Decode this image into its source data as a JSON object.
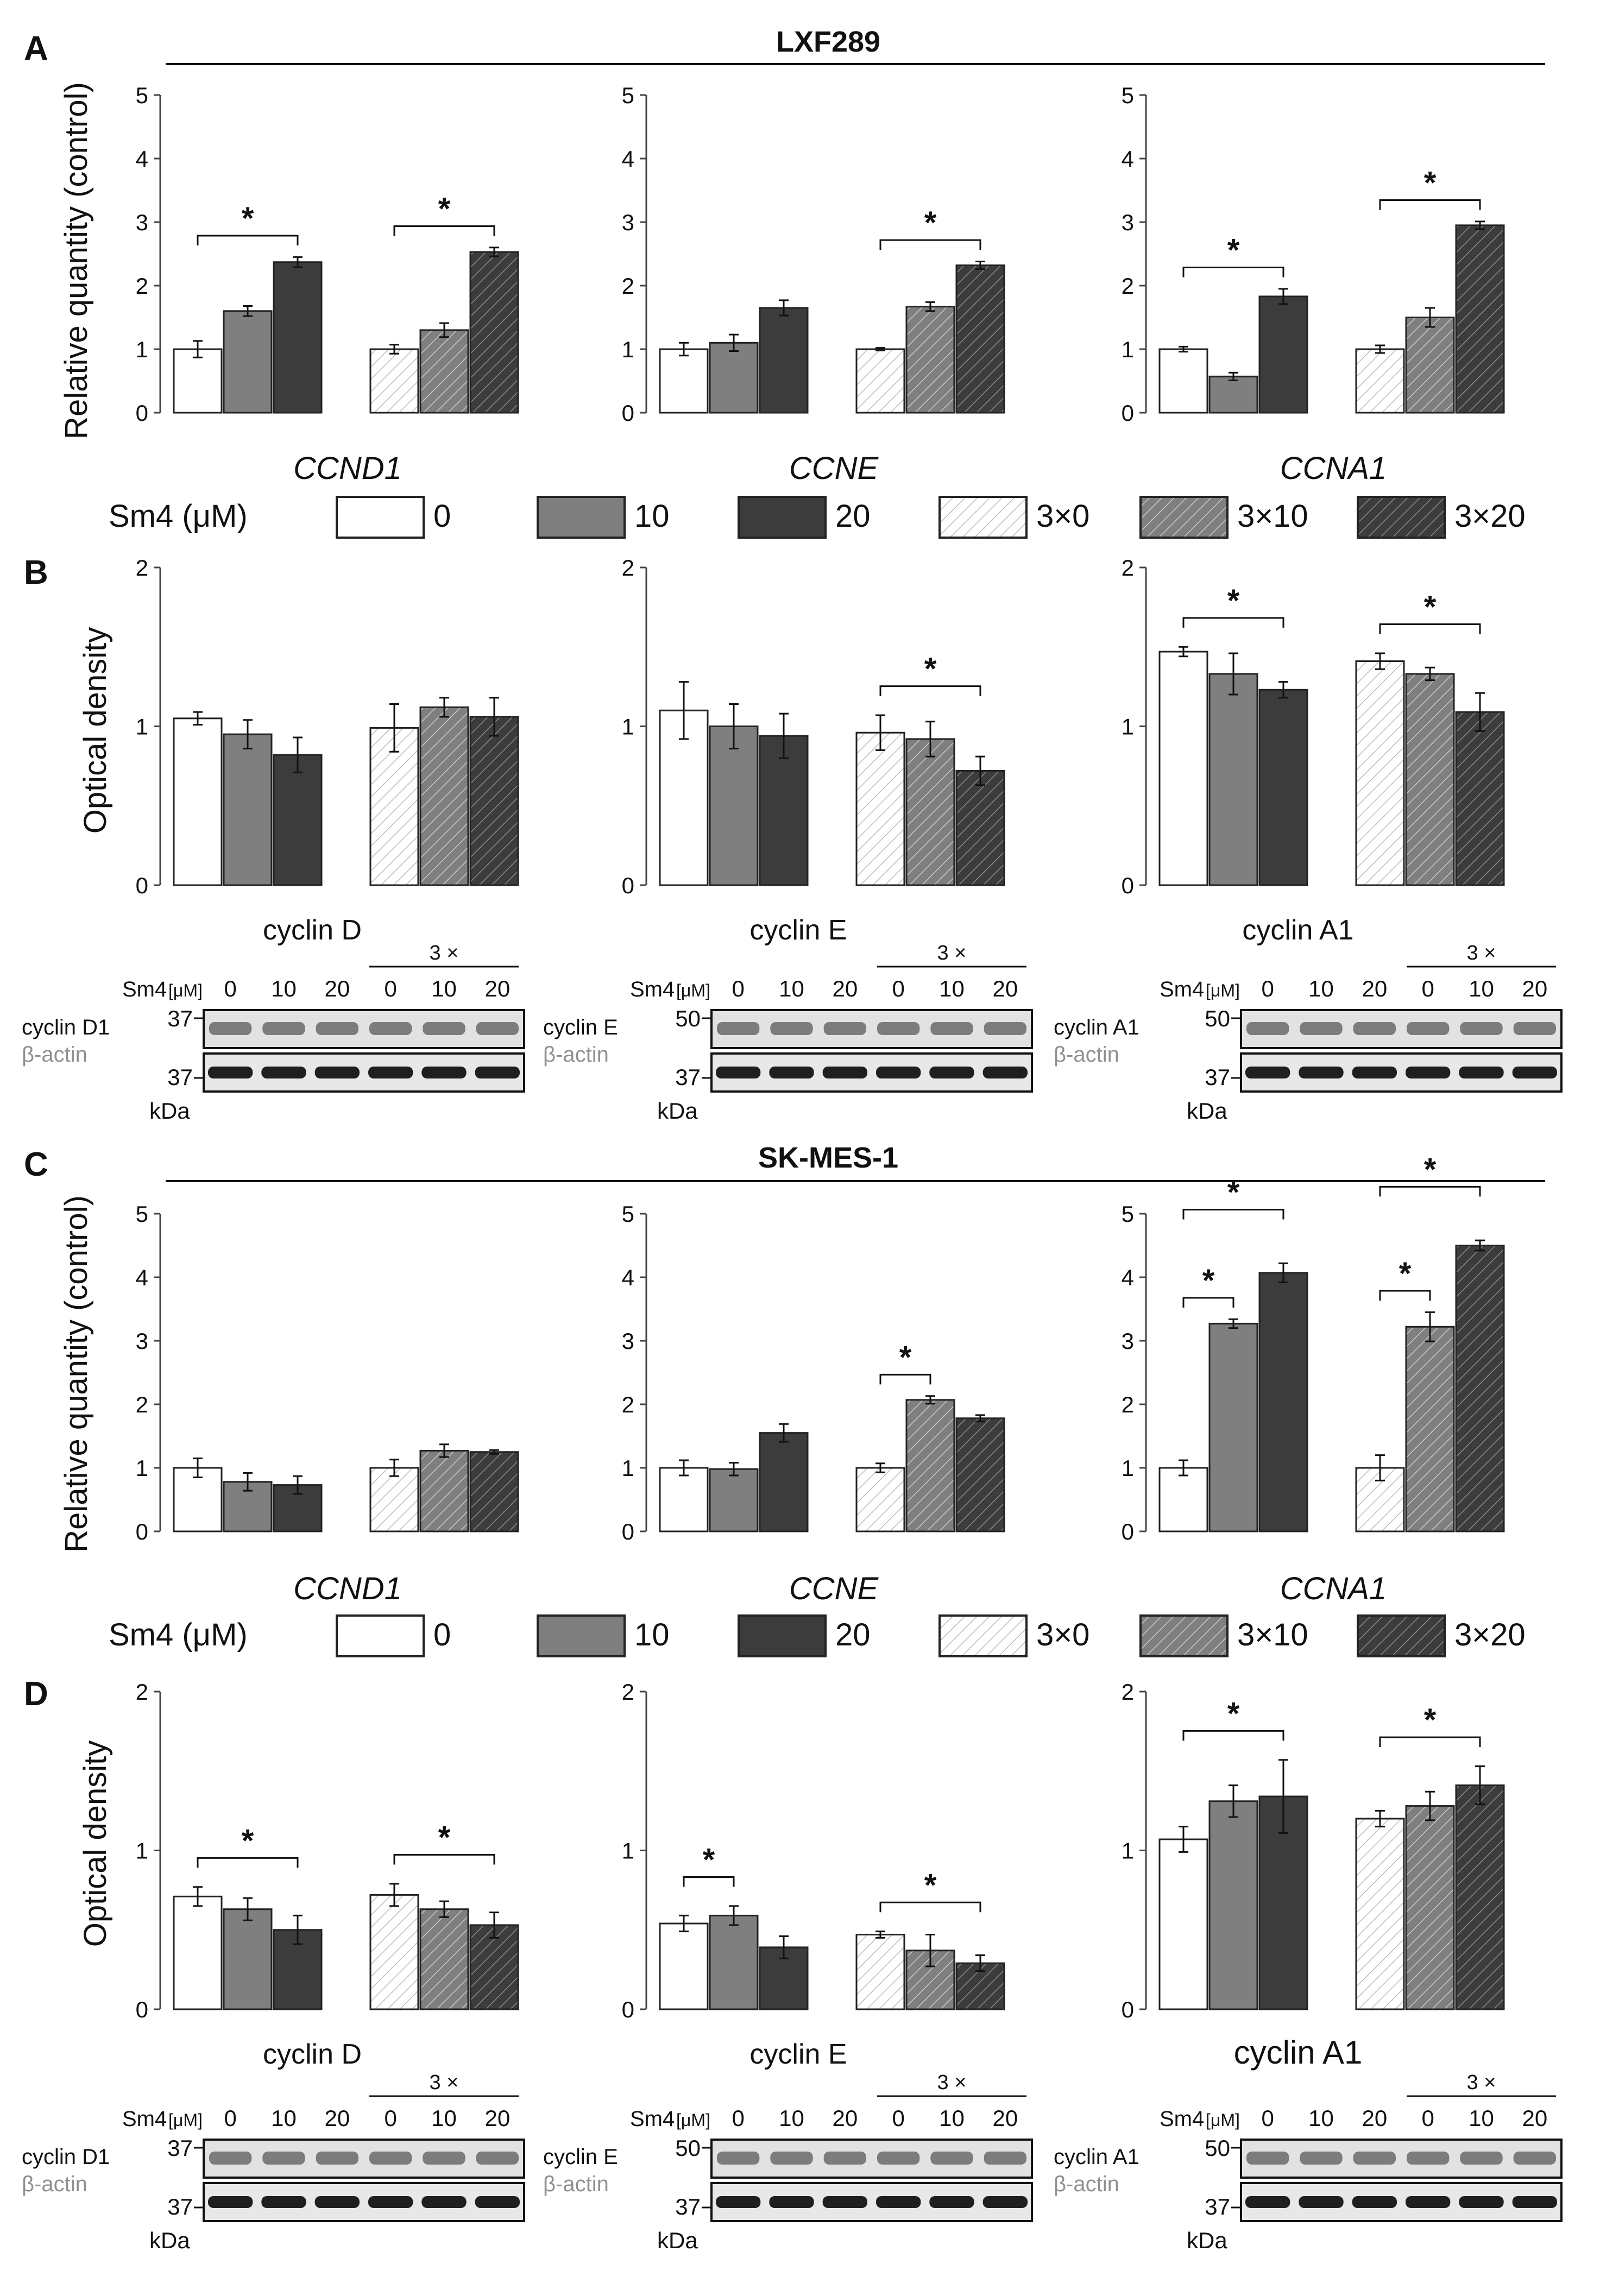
{
  "labels": {
    "panel_A": "A",
    "panel_B": "B",
    "panel_C": "C",
    "panel_D": "D",
    "group_top": "LXF289",
    "group_bottom": "SK-MES-1",
    "ylabel_qpcr": "Relative quantity (control)",
    "ylabel_od": "Optical density",
    "significance_mark": "*"
  },
  "legend": {
    "title": "Sm4 (μM)",
    "items": [
      {
        "label": "0",
        "pattern": "solid-white"
      },
      {
        "label": "10",
        "pattern": "solid-gray"
      },
      {
        "label": "20",
        "pattern": "solid-dark"
      },
      {
        "label": "3×0",
        "pattern": "hatch-white"
      },
      {
        "label": "3×10",
        "pattern": "hatch-gray"
      },
      {
        "label": "3×20",
        "pattern": "hatch-dark"
      }
    ]
  },
  "colors": {
    "white_bar": "#ffffff",
    "gray_bar": "#7f7f7f",
    "dark_bar": "#3c3c3c",
    "actin_text": "#909090",
    "axis": "#444444"
  },
  "blots": {
    "treatment_label": "Sm4",
    "unit_label": "[μM]",
    "repeat_label": "3 ×",
    "lanes": [
      "0",
      "10",
      "20",
      "0",
      "10",
      "20"
    ],
    "kda_label": "kDa",
    "actin_label": "β-actin",
    "actin_marker": "37",
    "panels": [
      {
        "title": "cyclin D",
        "protein": "cyclin D1",
        "marker": "37"
      },
      {
        "title": "cyclin E",
        "protein": "cyclin E",
        "marker": "50"
      },
      {
        "title": "cyclin A1",
        "protein": "cyclin A1",
        "marker": "50"
      },
      {
        "title": "cyclin D",
        "protein": "cyclin D1",
        "marker": "37"
      },
      {
        "title": "cyclin E",
        "protein": "cyclin E",
        "marker": "50"
      },
      {
        "title": "cyclin A1",
        "protein": "cyclin A1",
        "marker": "50"
      }
    ]
  },
  "chart_data": [
    {
      "type": "bar",
      "panel": "A",
      "gene": "CCND1",
      "ylim": [
        0,
        5
      ],
      "yticks": [
        0,
        1,
        2,
        3,
        4,
        5
      ],
      "categories": [
        "0",
        "10",
        "20",
        "3×0",
        "3×10",
        "3×20"
      ],
      "values": [
        1.0,
        1.6,
        2.37,
        1.0,
        1.3,
        2.53
      ],
      "errors": [
        0.13,
        0.08,
        0.08,
        0.07,
        0.11,
        0.07
      ],
      "significance": [
        {
          "from": 0,
          "to": 2
        },
        {
          "from": 3,
          "to": 5
        }
      ]
    },
    {
      "type": "bar",
      "panel": "A",
      "gene": "CCNE",
      "ylim": [
        0,
        5
      ],
      "yticks": [
        0,
        1,
        2,
        3,
        4,
        5
      ],
      "categories": [
        "0",
        "10",
        "20",
        "3×0",
        "3×10",
        "3×20"
      ],
      "values": [
        1.0,
        1.1,
        1.65,
        1.0,
        1.67,
        2.32
      ],
      "errors": [
        0.1,
        0.13,
        0.12,
        0.02,
        0.07,
        0.06
      ],
      "significance": [
        {
          "from": 3,
          "to": 5
        }
      ]
    },
    {
      "type": "bar",
      "panel": "A",
      "gene": "CCNA1",
      "ylim": [
        0,
        5
      ],
      "yticks": [
        0,
        1,
        2,
        3,
        4,
        5
      ],
      "categories": [
        "0",
        "10",
        "20",
        "3×0",
        "3×10",
        "3×20"
      ],
      "values": [
        1.0,
        0.57,
        1.83,
        1.0,
        1.5,
        2.95
      ],
      "errors": [
        0.04,
        0.06,
        0.12,
        0.06,
        0.15,
        0.06
      ],
      "significance": [
        {
          "from": 0,
          "to": 2
        },
        {
          "from": 3,
          "to": 5
        }
      ]
    },
    {
      "type": "bar",
      "panel": "B",
      "protein": "cyclin D",
      "ylim": [
        0,
        2
      ],
      "yticks": [
        0,
        1,
        2
      ],
      "categories": [
        "0",
        "10",
        "20",
        "3×0",
        "3×10",
        "3×20"
      ],
      "values": [
        1.05,
        0.95,
        0.82,
        0.99,
        1.12,
        1.06
      ],
      "errors": [
        0.04,
        0.09,
        0.11,
        0.15,
        0.06,
        0.12
      ],
      "significance": []
    },
    {
      "type": "bar",
      "panel": "B",
      "protein": "cyclin E",
      "ylim": [
        0,
        2
      ],
      "yticks": [
        0,
        1,
        2
      ],
      "categories": [
        "0",
        "10",
        "20",
        "3×0",
        "3×10",
        "3×20"
      ],
      "values": [
        1.1,
        1.0,
        0.94,
        0.96,
        0.92,
        0.72
      ],
      "errors": [
        0.18,
        0.14,
        0.14,
        0.11,
        0.11,
        0.09
      ],
      "significance": [
        {
          "from": 3,
          "to": 5
        }
      ]
    },
    {
      "type": "bar",
      "panel": "B",
      "protein": "cyclin A1",
      "ylim": [
        0,
        2
      ],
      "yticks": [
        0,
        1,
        2
      ],
      "categories": [
        "0",
        "10",
        "20",
        "3×0",
        "3×10",
        "3×20"
      ],
      "values": [
        1.47,
        1.33,
        1.23,
        1.41,
        1.33,
        1.09
      ],
      "errors": [
        0.03,
        0.13,
        0.05,
        0.05,
        0.04,
        0.12
      ],
      "significance": [
        {
          "from": 0,
          "to": 2
        },
        {
          "from": 3,
          "to": 5
        }
      ]
    },
    {
      "type": "bar",
      "panel": "C",
      "gene": "CCND1",
      "ylim": [
        0,
        5
      ],
      "yticks": [
        0,
        1,
        2,
        3,
        4,
        5
      ],
      "categories": [
        "0",
        "10",
        "20",
        "3×0",
        "3×10",
        "3×20"
      ],
      "values": [
        1.0,
        0.78,
        0.73,
        1.0,
        1.27,
        1.25
      ],
      "errors": [
        0.15,
        0.14,
        0.14,
        0.13,
        0.1,
        0.03
      ],
      "significance": []
    },
    {
      "type": "bar",
      "panel": "C",
      "gene": "CCNE",
      "ylim": [
        0,
        5
      ],
      "yticks": [
        0,
        1,
        2,
        3,
        4,
        5
      ],
      "categories": [
        "0",
        "10",
        "20",
        "3×0",
        "3×10",
        "3×20"
      ],
      "values": [
        1.0,
        0.98,
        1.55,
        1.0,
        2.07,
        1.78
      ],
      "errors": [
        0.12,
        0.1,
        0.14,
        0.07,
        0.06,
        0.05
      ],
      "significance": [
        {
          "from": 3,
          "to": 4
        }
      ]
    },
    {
      "type": "bar",
      "panel": "C",
      "gene": "CCNA1",
      "ylim": [
        0,
        5
      ],
      "yticks": [
        0,
        1,
        2,
        3,
        4,
        5
      ],
      "categories": [
        "0",
        "10",
        "20",
        "3×0",
        "3×10",
        "3×20"
      ],
      "values": [
        1.0,
        3.27,
        4.07,
        1.0,
        3.22,
        4.5
      ],
      "errors": [
        0.12,
        0.07,
        0.15,
        0.2,
        0.23,
        0.08
      ],
      "significance": [
        {
          "from": 0,
          "to": 1
        },
        {
          "from": 0,
          "to": 2,
          "level": 2
        },
        {
          "from": 3,
          "to": 4
        },
        {
          "from": 3,
          "to": 5,
          "level": 2
        }
      ]
    },
    {
      "type": "bar",
      "panel": "D",
      "protein": "cyclin D",
      "ylim": [
        0,
        2
      ],
      "yticks": [
        0,
        1,
        2
      ],
      "categories": [
        "0",
        "10",
        "20",
        "3×0",
        "3×10",
        "3×20"
      ],
      "values": [
        0.71,
        0.63,
        0.5,
        0.72,
        0.63,
        0.53
      ],
      "errors": [
        0.06,
        0.07,
        0.09,
        0.07,
        0.05,
        0.08
      ],
      "significance": [
        {
          "from": 0,
          "to": 2
        },
        {
          "from": 3,
          "to": 5
        }
      ]
    },
    {
      "type": "bar",
      "panel": "D",
      "protein": "cyclin E",
      "ylim": [
        0,
        2
      ],
      "yticks": [
        0,
        1,
        2
      ],
      "categories": [
        "0",
        "10",
        "20",
        "3×0",
        "3×10",
        "3×20"
      ],
      "values": [
        0.54,
        0.59,
        0.39,
        0.47,
        0.37,
        0.29
      ],
      "errors": [
        0.05,
        0.06,
        0.07,
        0.02,
        0.1,
        0.05
      ],
      "significance": [
        {
          "from": 0,
          "to": 1
        },
        {
          "from": 3,
          "to": 5
        }
      ]
    },
    {
      "type": "bar",
      "panel": "D",
      "protein": "cyclin A1",
      "ylim": [
        0,
        2
      ],
      "yticks": [
        0,
        1,
        2
      ],
      "categories": [
        "0",
        "10",
        "20",
        "3×0",
        "3×10",
        "3×20"
      ],
      "values": [
        1.07,
        1.31,
        1.34,
        1.2,
        1.28,
        1.41
      ],
      "errors": [
        0.08,
        0.1,
        0.23,
        0.05,
        0.09,
        0.12
      ],
      "significance": [
        {
          "from": 0,
          "to": 2
        },
        {
          "from": 3,
          "to": 5
        }
      ]
    }
  ]
}
